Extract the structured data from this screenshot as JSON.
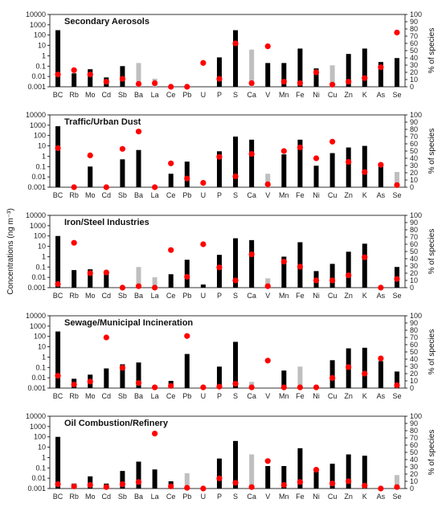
{
  "chart_data": {
    "type": "bar",
    "figure": {
      "ylabel_left": "Concentrations (ng m⁻³)",
      "ylabel_right": "% of species",
      "y_left_scale": "log",
      "y_left_range": [
        0.001,
        10000
      ],
      "y_left_ticks": [
        "0.001",
        "0.01",
        "0.1",
        "1",
        "10",
        "100",
        "1000",
        "10000"
      ],
      "y_right_range": [
        0,
        100
      ],
      "y_right_ticks": [
        "0",
        "10",
        "20",
        "30",
        "40",
        "50",
        "60",
        "70",
        "80",
        "90",
        "100"
      ],
      "colors": {
        "bar": "#000000",
        "bar_faint": "#bfbfbf",
        "marker": "#ff0000"
      }
    },
    "categories": [
      "BC",
      "Rb",
      "Mo",
      "Cd",
      "Sb",
      "Ba",
      "La",
      "Ce",
      "Pb",
      "U",
      "P",
      "S",
      "Ca",
      "V",
      "Mn",
      "Fe",
      "Ni",
      "Cu",
      "Zn",
      "K",
      "As",
      "Se"
    ],
    "panels": [
      {
        "title": "Secondary Aerosols",
        "series": [
          {
            "kind": "bar",
            "values": [
              300,
              0.02,
              0.05,
              0.008,
              0.1,
              0.2,
              0.006,
              null,
              null,
              null,
              0.7,
              300,
              4,
              0.2,
              0.2,
              5,
              0.06,
              0.12,
              1.5,
              5,
              0.25,
              0.6
            ],
            "faint": [
              false,
              false,
              false,
              false,
              false,
              true,
              true,
              false,
              false,
              false,
              false,
              false,
              true,
              false,
              false,
              false,
              false,
              true,
              false,
              false,
              false,
              false
            ]
          },
          {
            "kind": "percent",
            "values": [
              17,
              23,
              17,
              7,
              11,
              4,
              5,
              0,
              0,
              33,
              11,
              60,
              5,
              56,
              7,
              5,
              20,
              3,
              7,
              12,
              27,
              75
            ]
          }
        ]
      },
      {
        "title": "Traffic/Urban Dust",
        "series": [
          {
            "kind": "bar",
            "values": [
              800,
              null,
              0.1,
              null,
              0.5,
              4,
              null,
              0.02,
              0.3,
              null,
              3,
              80,
              40,
              0.02,
              1.5,
              40,
              0.12,
              2,
              7,
              10,
              0.2,
              0.03
            ],
            "faint": [
              false,
              false,
              false,
              false,
              false,
              false,
              false,
              false,
              false,
              false,
              false,
              false,
              false,
              true,
              false,
              false,
              false,
              false,
              false,
              false,
              false,
              true
            ]
          },
          {
            "kind": "percent",
            "values": [
              54,
              0,
              44,
              0,
              53,
              77,
              0,
              33,
              12,
              6,
              42,
              15,
              46,
              4,
              50,
              55,
              40,
              63,
              35,
              21,
              31,
              3
            ]
          }
        ]
      },
      {
        "title": "Iron/Steel Industries",
        "series": [
          {
            "kind": "bar",
            "values": [
              100,
              0.05,
              0.06,
              0.03,
              null,
              0.1,
              0.01,
              0.02,
              0.5,
              0.002,
              1.5,
              60,
              40,
              0.008,
              1,
              25,
              0.04,
              0.2,
              3,
              18,
              null,
              0.1
            ],
            "faint": [
              false,
              false,
              false,
              false,
              false,
              true,
              true,
              false,
              false,
              false,
              false,
              false,
              false,
              true,
              false,
              false,
              false,
              false,
              false,
              false,
              false,
              false
            ]
          },
          {
            "kind": "percent",
            "values": [
              5,
              62,
              20,
              21,
              0,
              2,
              0,
              52,
              15,
              60,
              28,
              10,
              46,
              2,
              36,
              29,
              10,
              10,
              17,
              42,
              0,
              12
            ]
          }
        ]
      },
      {
        "title": "Sewage/Municipal Incineration",
        "series": [
          {
            "kind": "bar",
            "values": [
              300,
              0.008,
              0.02,
              0.08,
              0.2,
              0.3,
              null,
              0.005,
              2,
              null,
              0.12,
              30,
              0.004,
              null,
              0.05,
              0.12,
              null,
              0.5,
              7,
              8,
              0.4,
              0.04
            ],
            "faint": [
              false,
              false,
              false,
              false,
              false,
              false,
              false,
              false,
              false,
              false,
              false,
              false,
              true,
              false,
              false,
              true,
              false,
              false,
              false,
              false,
              false,
              false
            ]
          },
          {
            "kind": "percent",
            "values": [
              17,
              5,
              9,
              70,
              28,
              7,
              1,
              3,
              72,
              1,
              2,
              6,
              1,
              38,
              1,
              1,
              1,
              14,
              29,
              20,
              41,
              4
            ]
          }
        ]
      },
      {
        "title": "Oil Combustion/Refinery",
        "series": [
          {
            "kind": "bar",
            "values": [
              100,
              0.003,
              0.015,
              0.003,
              0.05,
              0.4,
              0.07,
              0.005,
              0.03,
              null,
              0.8,
              40,
              2,
              0.15,
              0.15,
              8,
              0.06,
              0.25,
              2,
              1.5,
              null,
              0.02
            ],
            "faint": [
              false,
              false,
              false,
              false,
              false,
              false,
              false,
              false,
              true,
              false,
              false,
              false,
              true,
              false,
              false,
              false,
              false,
              false,
              false,
              false,
              false,
              true
            ]
          },
          {
            "kind": "percent",
            "values": [
              6,
              3,
              5,
              2,
              6,
              9,
              76,
              3,
              1,
              0,
              14,
              8,
              2,
              38,
              5,
              9,
              26,
              7,
              10,
              4,
              0,
              2
            ]
          }
        ]
      }
    ]
  }
}
